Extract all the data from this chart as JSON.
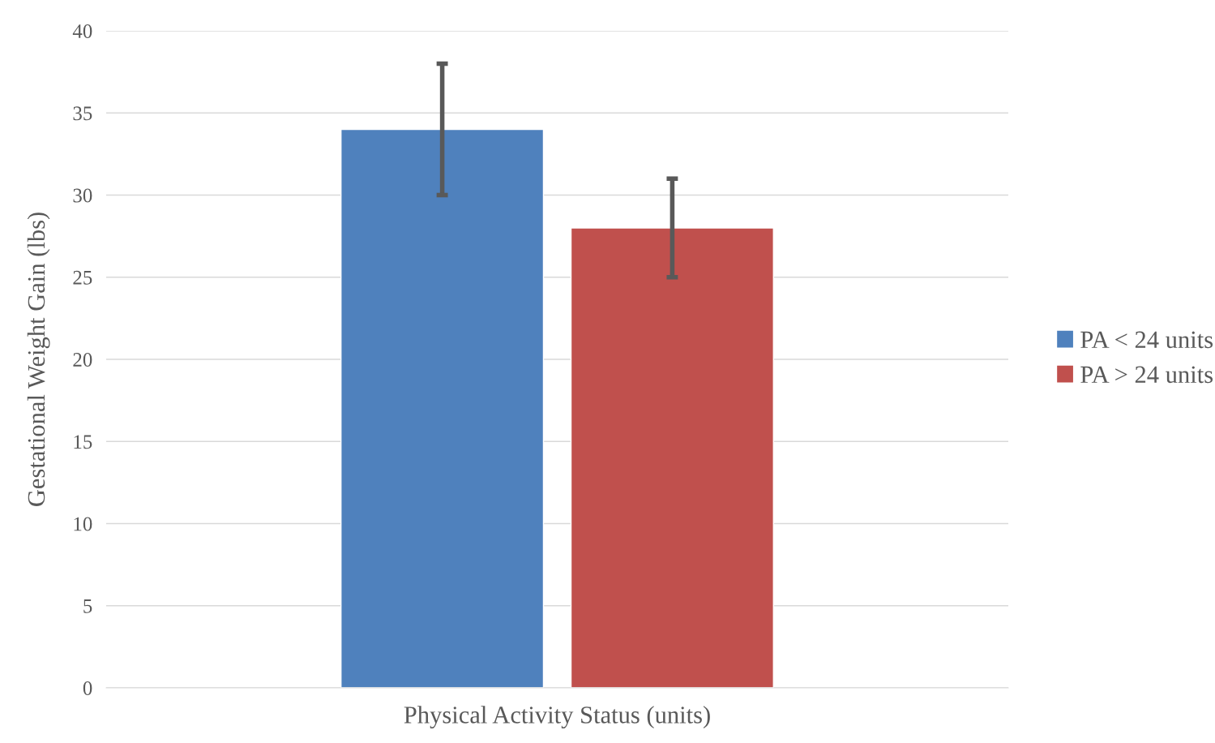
{
  "chart_data": {
    "type": "bar",
    "xlabel": "Physical Activity Status (units)",
    "ylabel": "Gestational Weight Gain (lbs)",
    "categories": [
      null
    ],
    "series": [
      {
        "name": "PA < 24 units",
        "color": "#4f81bd",
        "values": [
          34
        ],
        "errors": [
          [
            30,
            38
          ]
        ]
      },
      {
        "name": "PA > 24 units",
        "color": "#c0504d",
        "values": [
          28
        ],
        "errors": [
          [
            25,
            31
          ]
        ]
      }
    ],
    "ylim": [
      0,
      40
    ],
    "yticks": [
      0,
      5,
      10,
      15,
      20,
      25,
      30,
      35,
      40
    ],
    "grid": "y",
    "legend": "right"
  }
}
